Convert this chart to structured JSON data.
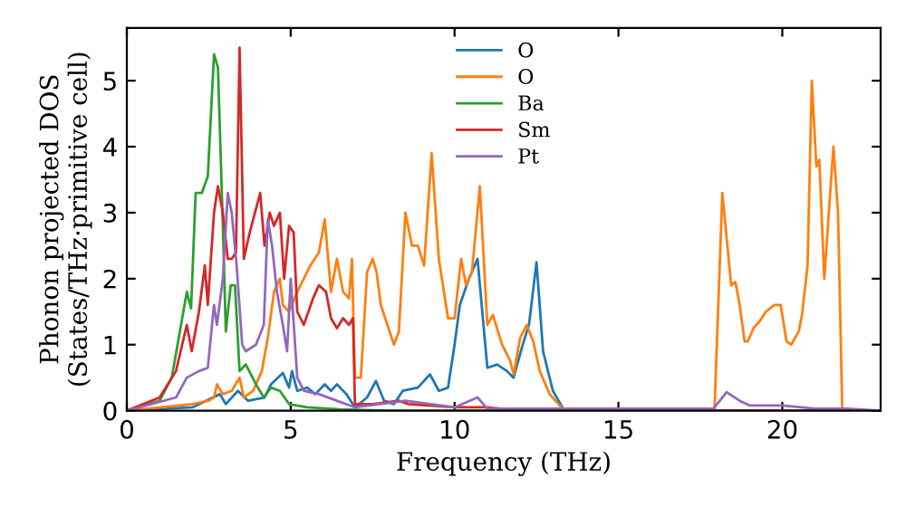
{
  "chart_data": {
    "type": "line",
    "xlabel": "Frequency (THz)",
    "ylabel": "Phonon projected DOS\n(States/THz·primitive cell)",
    "xlim": [
      0,
      23
    ],
    "ylim": [
      0,
      5.8
    ],
    "xticks": [
      0,
      5,
      10,
      15,
      20
    ],
    "yticks": [
      0,
      1,
      2,
      3,
      4,
      5
    ],
    "grid": false,
    "legend": "top",
    "line_style": "solid",
    "marker": "none",
    "series": [
      {
        "name": "O",
        "color": "#1f77b4",
        "x": [
          0,
          2,
          2.84,
          3.02,
          3.39,
          3.7,
          4.2,
          4.4,
          4.76,
          4.95,
          5.04,
          5.2,
          5.5,
          5.75,
          6.04,
          6.23,
          6.41,
          6.7,
          6.96,
          7.33,
          7.6,
          7.85,
          8.15,
          8.42,
          8.88,
          9.25,
          9.52,
          9.8,
          10,
          10.16,
          10.44,
          10.7,
          11,
          11.3,
          11.6,
          11.8,
          12.08,
          12.27,
          12.5,
          12.7,
          13,
          13.35,
          23
        ],
        "values": [
          0,
          0.05,
          0.25,
          0.1,
          0.3,
          0.15,
          0.2,
          0.4,
          0.57,
          0.35,
          0.6,
          0.3,
          0.35,
          0.25,
          0.4,
          0.3,
          0.4,
          0.25,
          0.05,
          0.2,
          0.45,
          0.15,
          0.1,
          0.3,
          0.35,
          0.55,
          0.3,
          0.35,
          1.0,
          1.6,
          2.0,
          2.3,
          0.65,
          0.7,
          0.6,
          0.5,
          1.0,
          1.3,
          2.25,
          0.9,
          0.3,
          0,
          0
        ]
      },
      {
        "name": "O",
        "color": "#ff7f0e",
        "x": [
          0,
          2,
          2.5,
          2.66,
          2.75,
          2.93,
          3.2,
          3.44,
          3.57,
          3.85,
          4.12,
          4.3,
          4.49,
          4.67,
          4.76,
          4.95,
          5.2,
          5.6,
          5.86,
          6.04,
          6.23,
          6.41,
          6.6,
          6.78,
          6.87,
          6.96,
          7.14,
          7.33,
          7.5,
          7.62,
          7.75,
          7.95,
          8.15,
          8.3,
          8.5,
          8.7,
          8.88,
          9.07,
          9.3,
          9.52,
          9.8,
          10,
          10.2,
          10.35,
          10.53,
          10.77,
          11,
          11.17,
          11.45,
          11.7,
          11.8,
          12,
          12.2,
          12.4,
          12.6,
          12.9,
          13.35,
          17.93,
          18.17,
          18.44,
          18.57,
          18.7,
          18.85,
          18.95,
          19.12,
          19.3,
          19.5,
          19.76,
          19.95,
          20.13,
          20.27,
          20.5,
          20.6,
          20.77,
          20.9,
          21.04,
          21.13,
          21.28,
          21.56,
          21.7,
          21.83,
          23
        ],
        "values": [
          0,
          0.1,
          0.15,
          0.2,
          0.4,
          0.25,
          0.3,
          0.5,
          0.2,
          0.3,
          0.6,
          1.1,
          1.8,
          2.0,
          1.6,
          1.5,
          1.8,
          2.2,
          2.4,
          2.9,
          1.8,
          2.3,
          1.8,
          1.7,
          2.3,
          0.5,
          0.5,
          2.1,
          2.3,
          2.1,
          1.6,
          1.3,
          1.0,
          1.2,
          3.0,
          2.5,
          2.5,
          2.2,
          3.9,
          2.3,
          1.4,
          1.4,
          2.3,
          1.9,
          2.1,
          3.4,
          1.3,
          1.45,
          1.0,
          0.75,
          0.55,
          1.1,
          1.3,
          1.05,
          0.6,
          0.25,
          0,
          0,
          3.3,
          1.9,
          1.95,
          1.6,
          1.05,
          1.05,
          1.25,
          1.35,
          1.5,
          1.6,
          1.6,
          1.05,
          1.0,
          1.2,
          1.45,
          2.2,
          5.0,
          3.7,
          3.8,
          2.0,
          4.0,
          3.0,
          0,
          0
        ]
      },
      {
        "name": "Ba",
        "color": "#2ca02c",
        "x": [
          0,
          1,
          1.37,
          1.83,
          1.96,
          2.1,
          2.29,
          2.47,
          2.66,
          2.78,
          2.93,
          3.02,
          3.17,
          3.3,
          3.44,
          3.63,
          3.94,
          4.18,
          4.4,
          4.67,
          4.95,
          5.5,
          6.5,
          8,
          23
        ],
        "values": [
          0,
          0.15,
          0.5,
          1.8,
          1.55,
          3.3,
          3.3,
          3.55,
          5.4,
          5.2,
          2.8,
          1.2,
          1.9,
          1.9,
          0.6,
          0.7,
          0.4,
          0.2,
          0.35,
          0.3,
          0.1,
          0.05,
          0.02,
          0,
          0
        ]
      },
      {
        "name": "Sm",
        "color": "#d62728",
        "x": [
          0,
          1,
          1.5,
          1.83,
          1.98,
          2.2,
          2.38,
          2.47,
          2.66,
          2.78,
          2.93,
          3.08,
          3.2,
          3.33,
          3.44,
          3.57,
          3.75,
          4.07,
          4.2,
          4.36,
          4.49,
          4.67,
          4.8,
          4.95,
          5.09,
          5.2,
          5.4,
          5.68,
          5.86,
          6.08,
          6.23,
          6.41,
          6.6,
          6.78,
          6.9,
          6.96,
          7.5,
          8.3,
          8.6,
          10,
          11,
          12,
          23
        ],
        "values": [
          0,
          0.2,
          0.6,
          1.3,
          0.9,
          1.5,
          2.2,
          1.6,
          3.0,
          3.4,
          3.0,
          2.3,
          2.3,
          2.4,
          5.5,
          2.3,
          2.7,
          3.3,
          2.5,
          3.0,
          2.8,
          3.0,
          2.0,
          2.8,
          2.7,
          1.5,
          1.3,
          1.7,
          1.9,
          1.8,
          1.4,
          1.25,
          1.4,
          1.3,
          1.4,
          0.1,
          0.1,
          0.15,
          0.1,
          0.05,
          0.05,
          0,
          0
        ]
      },
      {
        "name": "Pt",
        "color": "#9467bd",
        "x": [
          0,
          1.5,
          1.83,
          2.2,
          2.47,
          2.66,
          2.75,
          2.93,
          3.08,
          3.2,
          3.35,
          3.52,
          3.63,
          3.94,
          4.18,
          4.3,
          4.43,
          4.58,
          4.76,
          4.89,
          5.0,
          5.2,
          5.4,
          5.86,
          6.41,
          6.96,
          8.5,
          10,
          10.7,
          11,
          17.9,
          18.3,
          18.7,
          19,
          20,
          21,
          22,
          23
        ],
        "values": [
          0,
          0.2,
          0.5,
          0.6,
          0.65,
          1.6,
          1.3,
          2.0,
          3.3,
          3.0,
          2.2,
          1.0,
          0.9,
          1.0,
          1.3,
          2.9,
          2.5,
          1.8,
          1.3,
          0.9,
          2.0,
          0.5,
          0.3,
          0.25,
          0.15,
          0.05,
          0.15,
          0.05,
          0.2,
          0.03,
          0.03,
          0.28,
          0.15,
          0.08,
          0.08,
          0.03,
          0.03,
          0
        ]
      }
    ]
  }
}
